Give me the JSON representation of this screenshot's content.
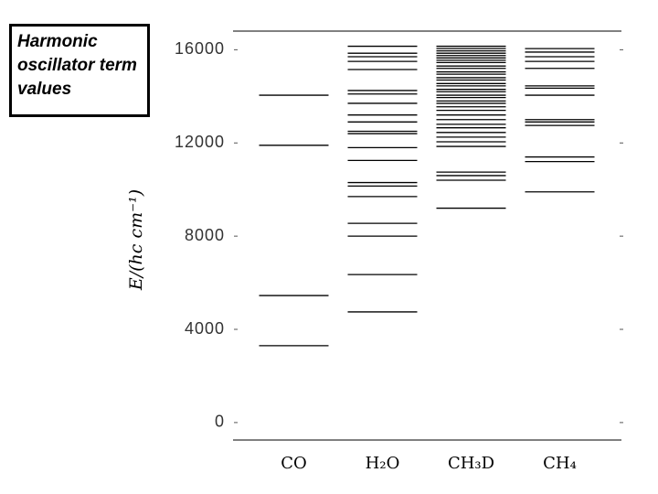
{
  "chart_data": {
    "type": "levels",
    "title": "Harmonic oscillator term values",
    "y_label": "E/(hc cm⁻¹)",
    "categories": [
      "CO",
      "H₂O",
      "CH₃D",
      "CH₄"
    ],
    "values": [
      [
        3300,
        5450,
        11900,
        14050
      ],
      [
        4750,
        6350,
        8000,
        8550,
        9700,
        10150,
        10300,
        11250,
        11800,
        12400,
        12500,
        12900,
        13200,
        13700,
        14100,
        14250,
        15150,
        15500,
        15700,
        15850,
        16150
      ],
      [
        9200,
        10400,
        10600,
        10750,
        11850,
        12050,
        12250,
        12450,
        12650,
        12800,
        13000,
        13200,
        13400,
        13550,
        13700,
        13800,
        13950,
        14050,
        14200,
        14300,
        14450,
        14550,
        14700,
        14800,
        14950,
        15050,
        15200,
        15300,
        15450,
        15550,
        15650,
        15750,
        15850,
        15950,
        16050,
        16150
      ],
      [
        9900,
        11200,
        11400,
        12750,
        12900,
        13000,
        14050,
        14350,
        14450,
        15200,
        15500,
        15700,
        15900,
        16050
      ]
    ],
    "color": "#000000",
    "ylim": [
      -750,
      16800
    ],
    "yticks": [
      0,
      4000,
      8000,
      12000,
      16000
    ]
  }
}
